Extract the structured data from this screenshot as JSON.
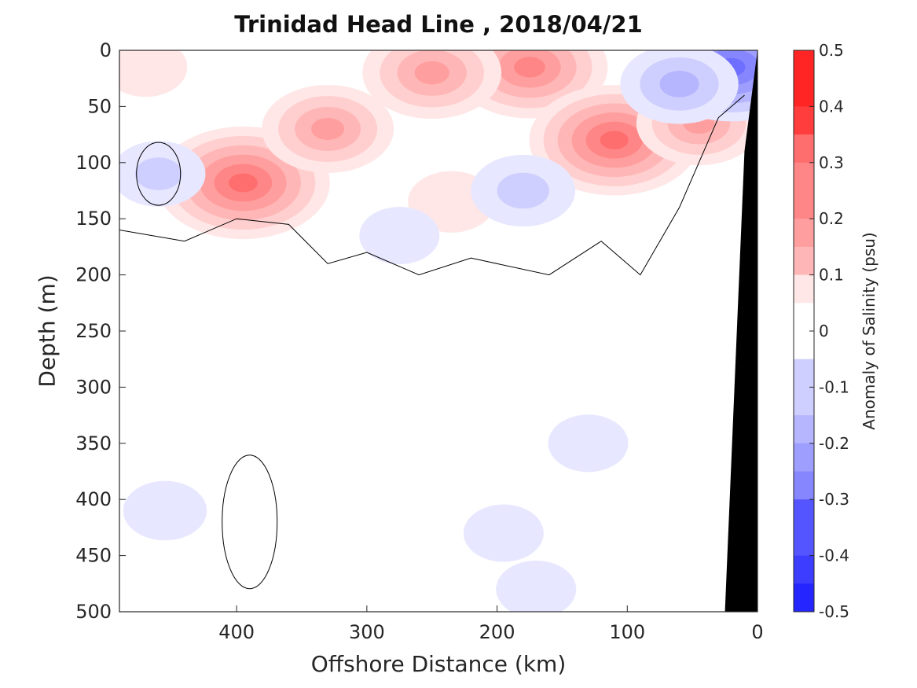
{
  "chart_data": {
    "type": "heatmap",
    "title": "Trinidad Head Line , 2018/04/21",
    "xlabel": "Offshore Distance (km)",
    "ylabel": "Depth (m)",
    "colorbar_label": "Anomaly of Salinity (psu)",
    "xlim": [
      490,
      0
    ],
    "ylim": [
      500,
      0
    ],
    "x_ticks": [
      "400",
      "300",
      "200",
      "100",
      "0"
    ],
    "y_ticks": [
      "0",
      "50",
      "100",
      "150",
      "200",
      "250",
      "300",
      "350",
      "400",
      "450",
      "500"
    ],
    "colorbar_ticks": [
      "0.5",
      "0.4",
      "0.3",
      "0.2",
      "0.1",
      "0",
      "-0.1",
      "-0.2",
      "-0.3",
      "-0.4",
      "-0.5"
    ],
    "clim": [
      -0.5,
      0.5
    ],
    "contour_interval": 0.05,
    "zero_contour": true,
    "colors": {
      "max": "#ff0000",
      "mid": "#ffffff",
      "min": "#0000ff",
      "land": "#000000"
    },
    "anomaly_features": [
      {
        "x": 175,
        "depth": 15,
        "value": 0.27
      },
      {
        "x": 110,
        "depth": 80,
        "value": 0.31
      },
      {
        "x": 395,
        "depth": 118,
        "value": 0.32
      },
      {
        "x": 330,
        "depth": 70,
        "value": 0.2
      },
      {
        "x": 250,
        "depth": 20,
        "value": 0.22
      },
      {
        "x": 470,
        "depth": 15,
        "value": 0.06
      },
      {
        "x": 45,
        "depth": 65,
        "value": 0.18
      },
      {
        "x": 235,
        "depth": 135,
        "value": 0.07
      },
      {
        "x": 20,
        "depth": 15,
        "value": -0.3
      },
      {
        "x": 60,
        "depth": 30,
        "value": -0.16
      },
      {
        "x": 180,
        "depth": 125,
        "value": -0.12
      },
      {
        "x": 460,
        "depth": 110,
        "value": -0.09
      },
      {
        "x": 455,
        "depth": 410,
        "value": -0.06
      },
      {
        "x": 170,
        "depth": 480,
        "value": -0.05
      },
      {
        "x": 130,
        "depth": 350,
        "value": -0.05
      },
      {
        "x": 195,
        "depth": 430,
        "value": -0.05
      },
      {
        "x": 275,
        "depth": 165,
        "value": -0.05
      }
    ],
    "bathymetry": [
      [
        0,
        0
      ],
      [
        10,
        90
      ],
      [
        25,
        500
      ]
    ]
  }
}
